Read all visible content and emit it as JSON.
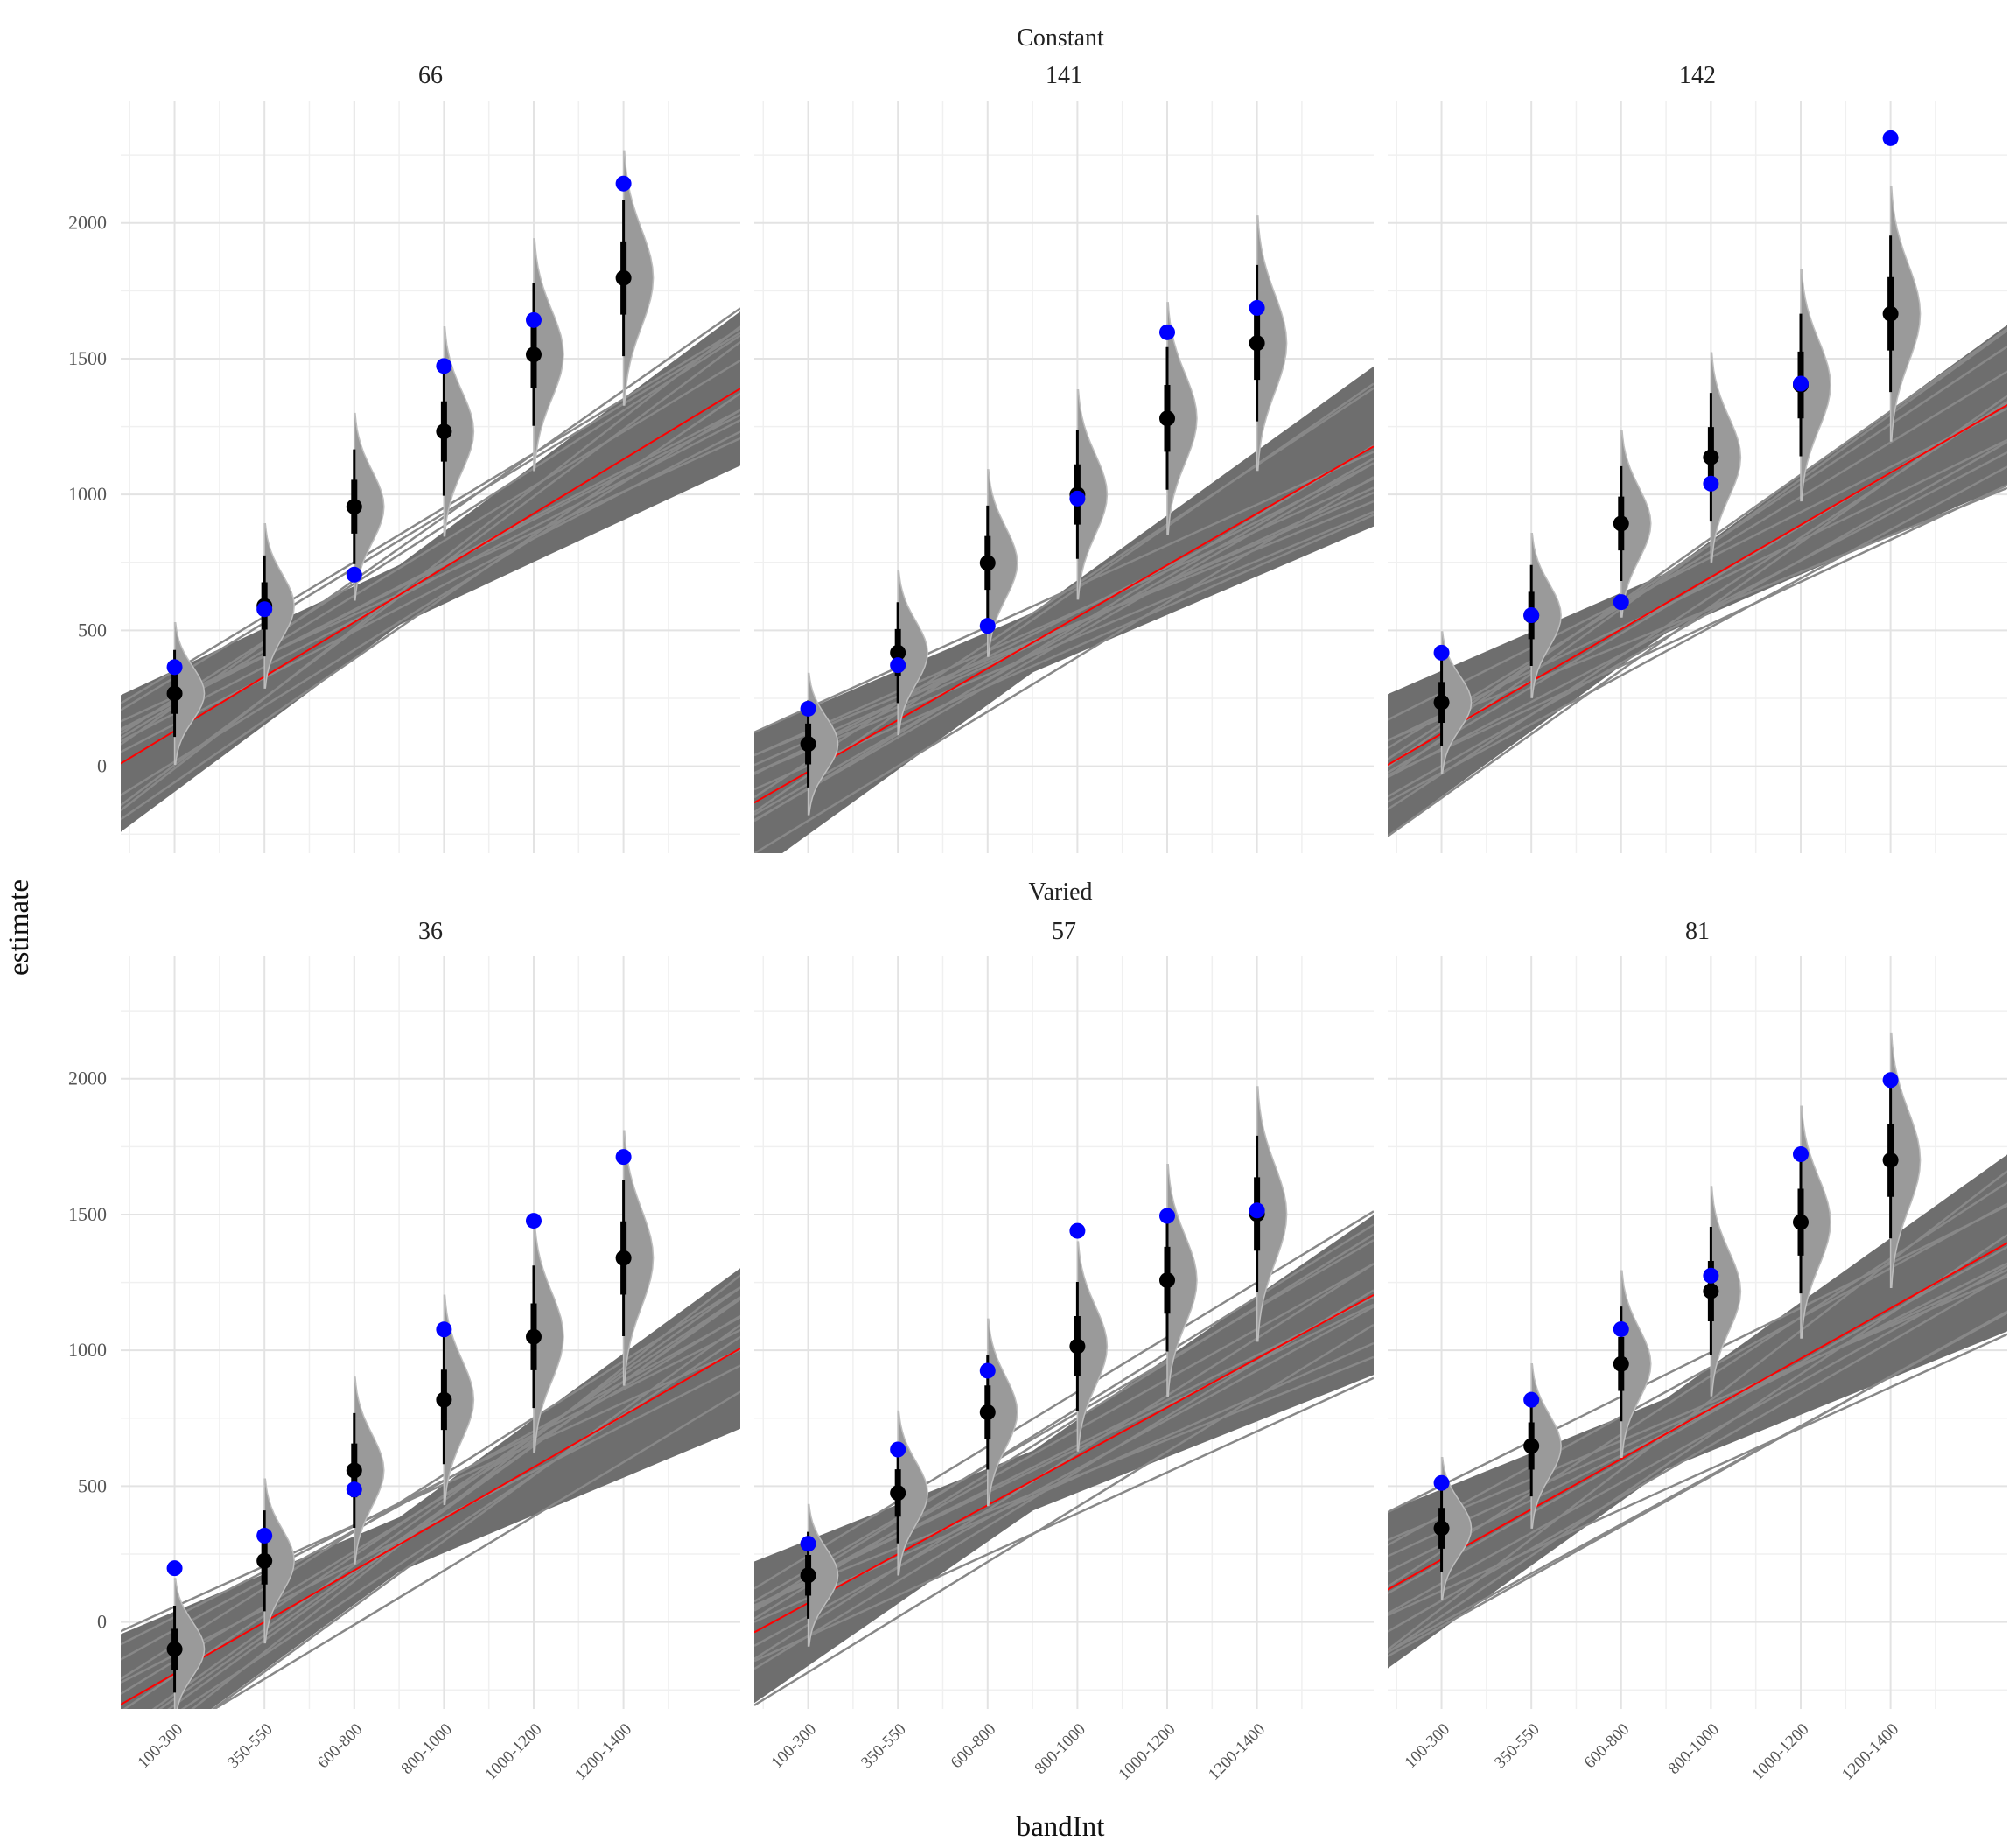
{
  "chart_data": {
    "type": "faceted-regression",
    "xlabel": "bandInt",
    "ylabel": "estimate",
    "categories": [
      "100-300",
      "350-550",
      "600-800",
      "800-1000",
      "1000-1200",
      "1200-1400"
    ],
    "yticks": [
      0,
      500,
      1000,
      1500,
      2000
    ],
    "ylim": [
      -320,
      2450
    ],
    "grid": true,
    "colors": {
      "fit": "#ff0000",
      "observed": "#0000ff",
      "estimate": "#000000",
      "band": "#6e6e6e",
      "density": "#9a9a9a"
    },
    "groups": [
      {
        "label": "Constant",
        "panels": [
          {
            "id": "66",
            "intercept": 130,
            "slope": 200,
            "halfwidth": [
              110,
              270
            ],
            "observed": [
              365,
              578,
              705,
              1473,
              1642,
              2145
            ],
            "estimate": [
              268,
              590,
              955,
              1232,
              1515,
              1797
            ]
          },
          {
            "id": "141",
            "intercept": -20,
            "slope": 190,
            "halfwidth": [
              110,
              280
            ],
            "observed": [
              212,
              372,
              517,
              985,
              1597,
              1687
            ],
            "estimate": [
              82,
              418,
              748,
              1000,
              1280,
              1557
            ]
          },
          {
            "id": "142",
            "intercept": 120,
            "slope": 192,
            "halfwidth": [
              110,
              280
            ],
            "observed": [
              418,
              556,
              604,
              1040,
              1408,
              2312
            ],
            "estimate": [
              235,
              555,
              893,
              1137,
              1403,
              1665
            ]
          }
        ]
      },
      {
        "label": "Varied",
        "panels": [
          {
            "id": "36",
            "intercept": -190,
            "slope": 190,
            "halfwidth": [
              100,
              280
            ],
            "observed": [
              198,
              318,
              488,
              1077,
              1477,
              1712
            ],
            "estimate": [
              -100,
              225,
              558,
              818,
              1050,
              1340
            ]
          },
          {
            "id": "57",
            "intercept": 70,
            "slope": 180,
            "halfwidth": [
              110,
              280
            ],
            "observed": [
              288,
              635,
              925,
              1440,
              1495,
              1515
            ],
            "estimate": [
              172,
              475,
              772,
              1015,
              1258,
              1502
            ]
          },
          {
            "id": "81",
            "intercept": 230,
            "slope": 185,
            "halfwidth": [
              130,
              310
            ],
            "observed": [
              512,
              818,
              1078,
              1275,
              1722,
              1995
            ],
            "estimate": [
              345,
              648,
              950,
              1218,
              1472,
              1700
            ]
          }
        ]
      }
    ]
  }
}
